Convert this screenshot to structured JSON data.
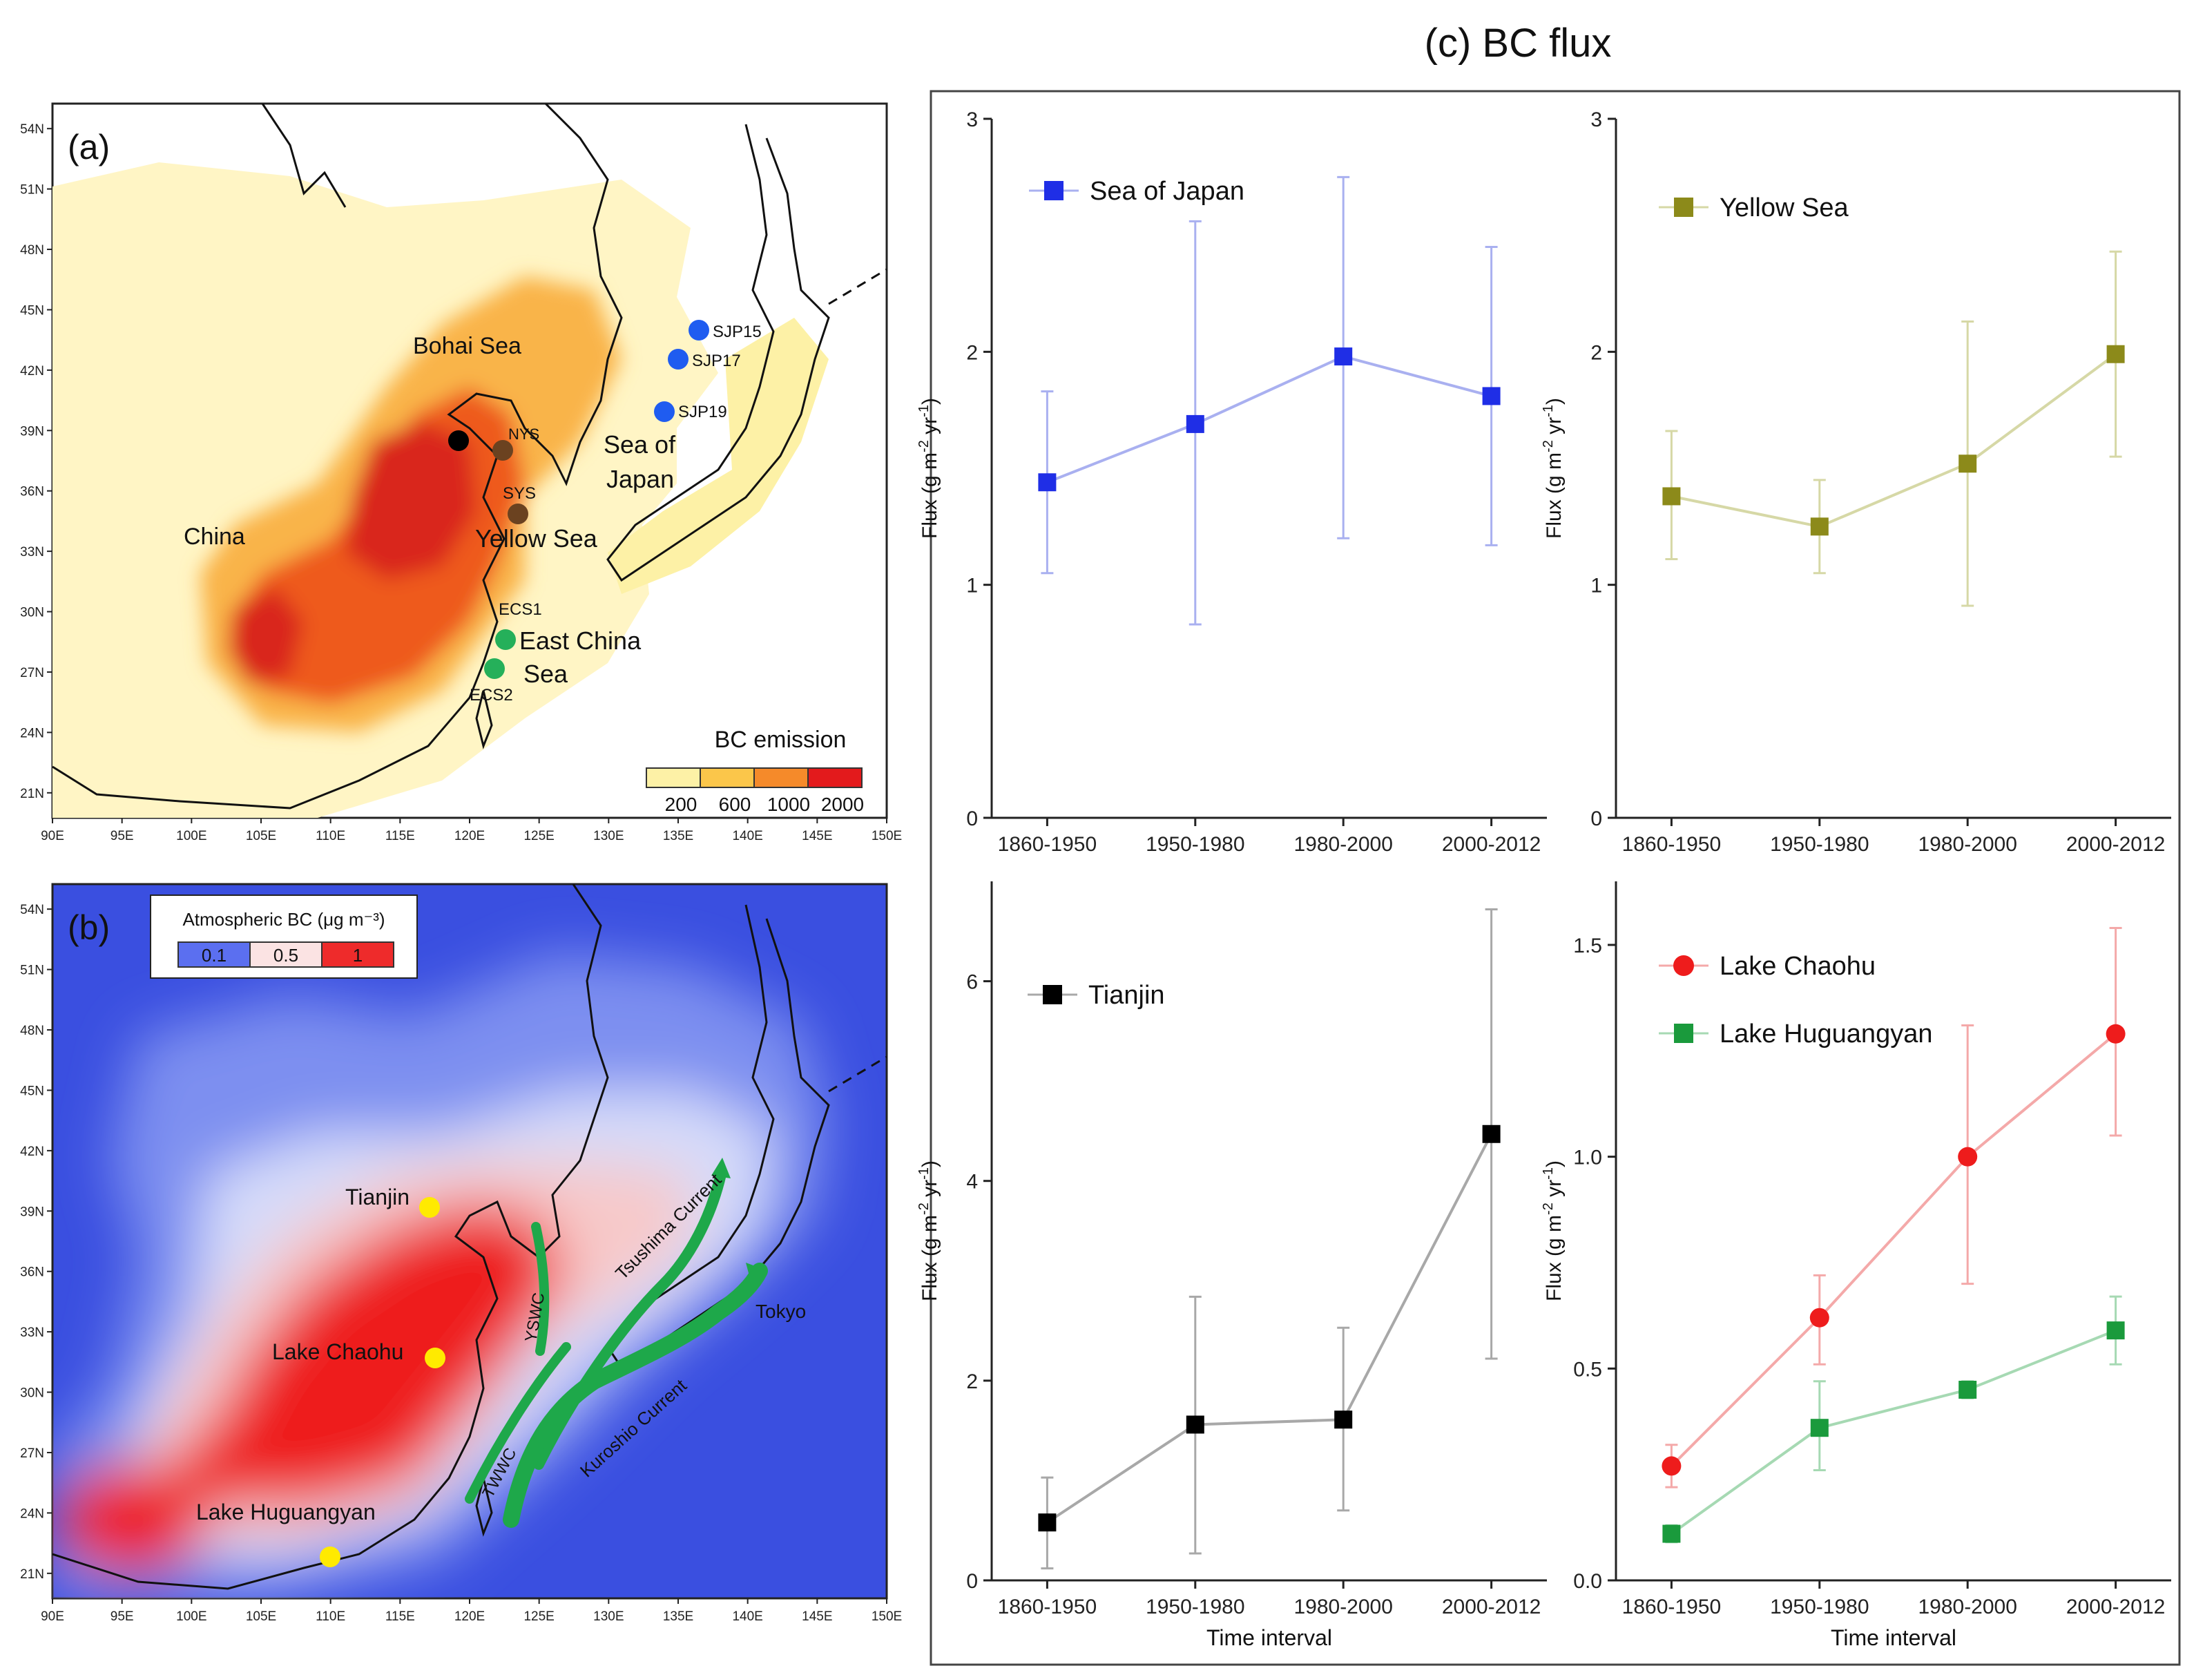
{
  "page_title": "(c) BC flux",
  "map_a": {
    "panel_label": "(a)",
    "lat_ticks": [
      "54N",
      "51N",
      "48N",
      "45N",
      "42N",
      "39N",
      "36N",
      "33N",
      "30N",
      "27N",
      "24N",
      "21N"
    ],
    "lon_ticks": [
      "90E",
      "95E",
      "100E",
      "105E",
      "110E",
      "115E",
      "120E",
      "125E",
      "130E",
      "135E",
      "140E",
      "145E",
      "150E"
    ],
    "places": {
      "china": "China",
      "bohai": "Bohai Sea",
      "sea_of": "Sea of",
      "japan": "Japan",
      "yellow": "Yellow Sea",
      "east_china": "East China",
      "sea": "Sea"
    },
    "sites": {
      "sjp15": "SJP15",
      "sjp17": "SJP17",
      "sjp19": "SJP19",
      "nys": "NYS",
      "sys": "SYS",
      "ecs1": "ECS1",
      "ecs2": "ECS2"
    },
    "legend": {
      "title": "BC emission",
      "labels": [
        "200",
        "600",
        "1000",
        "2000"
      ],
      "colors": [
        "#fdf1a6",
        "#fbc64a",
        "#f58a2a",
        "#e31a1c"
      ]
    },
    "colors": {
      "background": "#fff5c5",
      "mid": "#f9b44a",
      "high": "#ee5a1e",
      "top": "#d9281a"
    }
  },
  "map_b": {
    "panel_label": "(b)",
    "lat_ticks": [
      "54N",
      "51N",
      "48N",
      "45N",
      "42N",
      "39N",
      "36N",
      "33N",
      "30N",
      "27N",
      "24N",
      "21N"
    ],
    "lon_ticks": [
      "90E",
      "95E",
      "100E",
      "105E",
      "110E",
      "115E",
      "120E",
      "125E",
      "130E",
      "135E",
      "140E",
      "145E",
      "150E"
    ],
    "legend": {
      "title": "Atmospheric BC (μg m⁻³)",
      "labels": [
        "0.1",
        "0.5",
        "1"
      ],
      "colors": [
        "#5b6ff0",
        "#fbe3e3",
        "#ee2b2b"
      ]
    },
    "places": {
      "tianjin": "Tianjin",
      "chaohu": "Lake Chaohu",
      "huguangyan": "Lake Huguangyan",
      "tokyo": "Tokyo"
    },
    "currents": {
      "tsushima": "Tsushima Current",
      "yswc": "YSWC",
      "kuroshio": "Kuroshio Current",
      "twwc": "TWWC"
    },
    "colors": {
      "ocean": "#3a4fe0",
      "land_low": "#b9c2f6",
      "pink": "#f7c9c9",
      "red": "#ee1f1f",
      "current": "#1ea84a",
      "marker": "#ffea00"
    }
  },
  "chart_data": [
    {
      "type": "line",
      "title": "Sea of Japan",
      "categories": [
        "1860-1950",
        "1950-1980",
        "1980-2000",
        "2000-2012"
      ],
      "series": [
        {
          "name": "Sea of Japan",
          "values": [
            1.44,
            1.69,
            1.98,
            1.81
          ],
          "err_low": [
            1.05,
            0.83,
            1.2,
            1.17
          ],
          "err_high": [
            1.83,
            2.56,
            2.75,
            2.45
          ],
          "color": "#1f2ee6",
          "line": "#a9b0f0",
          "marker": "square"
        }
      ],
      "ylim": [
        0,
        3
      ],
      "yticks": [
        "0",
        "1",
        "2",
        "3"
      ],
      "ylabel": "Flux (g m-2 yr-1)",
      "xlabel": ""
    },
    {
      "type": "line",
      "title": "Yellow Sea",
      "categories": [
        "1860-1950",
        "1950-1980",
        "1980-2000",
        "2000-2012"
      ],
      "series": [
        {
          "name": "Yellow Sea",
          "values": [
            1.38,
            1.25,
            1.52,
            1.99
          ],
          "err_low": [
            1.11,
            1.05,
            0.91,
            1.55
          ],
          "err_high": [
            1.66,
            1.45,
            2.13,
            2.43
          ],
          "color": "#8c8a1a",
          "line": "#d6d8a6",
          "marker": "square"
        }
      ],
      "ylim": [
        0,
        3
      ],
      "yticks": [
        "0",
        "1",
        "2",
        "3"
      ],
      "ylabel": "Flux (g m-2 yr-1)",
      "xlabel": ""
    },
    {
      "type": "line",
      "title": "Tianjin",
      "categories": [
        "1860-1950",
        "1950-1980",
        "1980-2000",
        "2000-2012"
      ],
      "series": [
        {
          "name": "Tianjin",
          "values": [
            0.58,
            1.56,
            1.61,
            4.47
          ],
          "err_low": [
            0.12,
            0.27,
            0.7,
            2.22
          ],
          "err_high": [
            1.03,
            2.84,
            2.53,
            6.72
          ],
          "color": "#000000",
          "line": "#a8a8a8",
          "marker": "square"
        }
      ],
      "ylim": [
        0,
        7
      ],
      "yticks": [
        "0",
        "2",
        "4",
        "6"
      ],
      "ylabel": "Flux (g m-2 yr-1)",
      "xlabel": "Time interval"
    },
    {
      "type": "line",
      "title": "",
      "categories": [
        "1860-1950",
        "1950-1980",
        "1980-2000",
        "2000-2012"
      ],
      "series": [
        {
          "name": "Lake Chaohu",
          "values": [
            0.27,
            0.62,
            1.0,
            1.29
          ],
          "err_low": [
            0.22,
            0.51,
            0.7,
            1.05
          ],
          "err_high": [
            0.32,
            0.72,
            1.31,
            1.54
          ],
          "color": "#ee1c1c",
          "line": "#f4a9a9",
          "marker": "circle"
        },
        {
          "name": "Lake Huguangyan",
          "values": [
            0.11,
            0.36,
            0.45,
            0.59
          ],
          "err_low": [
            0.09,
            0.26,
            0.43,
            0.51
          ],
          "err_high": [
            0.13,
            0.47,
            0.47,
            0.67
          ],
          "color": "#1a9a3c",
          "line": "#a6d9b3",
          "marker": "square"
        }
      ],
      "ylim": [
        0,
        1.65
      ],
      "yticks": [
        "0.0",
        "0.5",
        "1.0",
        "1.5"
      ],
      "ylabel": "Flux (g m-2 yr-1)",
      "xlabel": "Time interval"
    }
  ]
}
